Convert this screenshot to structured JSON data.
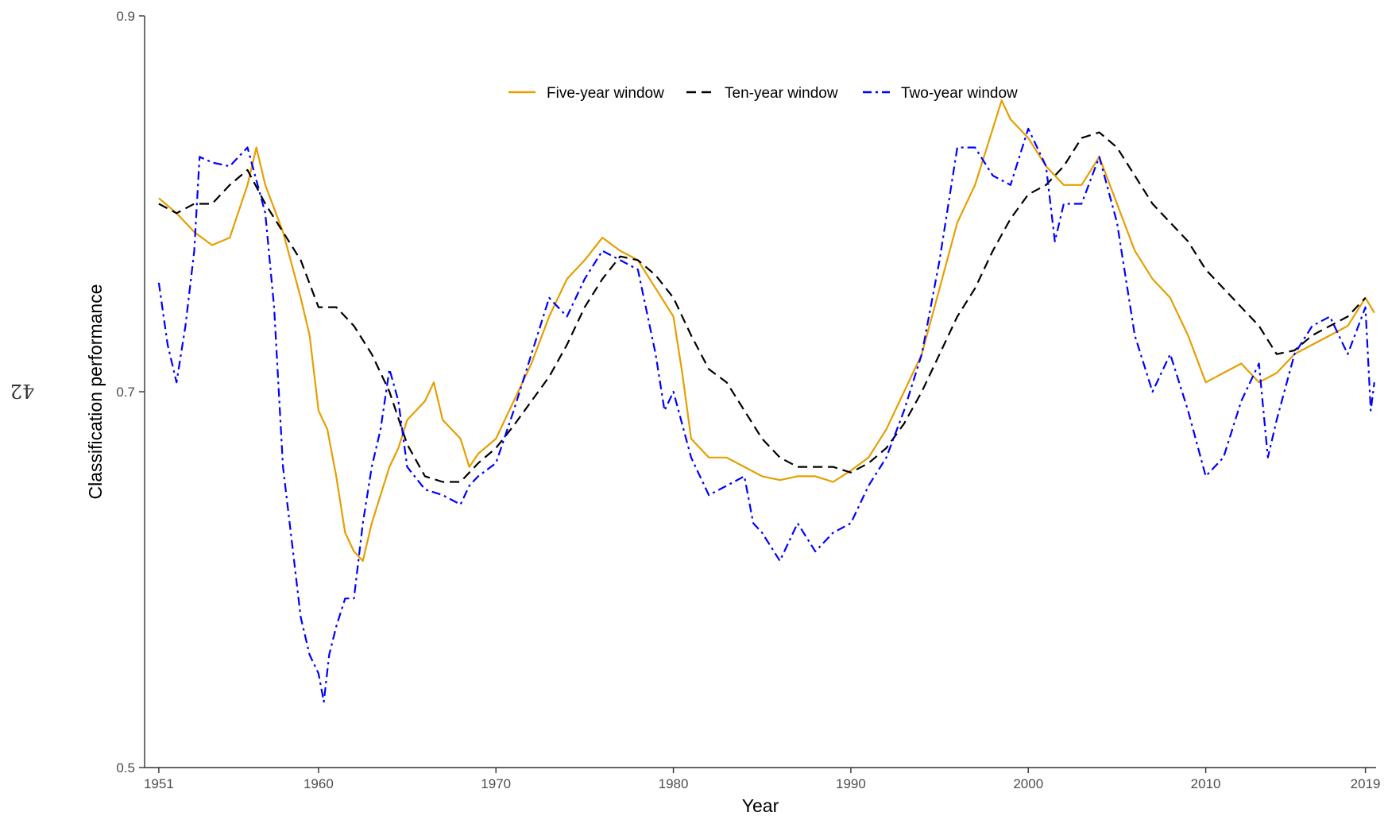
{
  "page_number": "42",
  "chart_data": {
    "type": "line",
    "title": "",
    "xlabel": "Year",
    "ylabel": "Classification performance",
    "xlim": [
      1950.2,
      2019.6
    ],
    "ylim": [
      0.5,
      0.9
    ],
    "x_ticks": [
      1951,
      1960,
      1970,
      1980,
      1990,
      2000,
      2010,
      2019
    ],
    "y_ticks": [
      0.5,
      0.7,
      0.9
    ],
    "grid": false,
    "legend_position": "top-center",
    "series": [
      {
        "name": "Five-year window",
        "color": "#E69F00",
        "dash": "solid",
        "points": [
          [
            1951,
            0.803
          ],
          [
            1952,
            0.795
          ],
          [
            1953,
            0.785
          ],
          [
            1954,
            0.778
          ],
          [
            1955,
            0.782
          ],
          [
            1956,
            0.81
          ],
          [
            1956.5,
            0.83
          ],
          [
            1957,
            0.81
          ],
          [
            1958,
            0.785
          ],
          [
            1959,
            0.75
          ],
          [
            1959.5,
            0.73
          ],
          [
            1960,
            0.69
          ],
          [
            1960.5,
            0.68
          ],
          [
            1961,
            0.655
          ],
          [
            1961.5,
            0.625
          ],
          [
            1962,
            0.615
          ],
          [
            1962.5,
            0.61
          ],
          [
            1963,
            0.63
          ],
          [
            1963.5,
            0.645
          ],
          [
            1964,
            0.66
          ],
          [
            1964.5,
            0.67
          ],
          [
            1965,
            0.685
          ],
          [
            1966,
            0.695
          ],
          [
            1966.5,
            0.705
          ],
          [
            1967,
            0.685
          ],
          [
            1968,
            0.675
          ],
          [
            1968.5,
            0.66
          ],
          [
            1969,
            0.667
          ],
          [
            1970,
            0.675
          ],
          [
            1971,
            0.695
          ],
          [
            1972,
            0.715
          ],
          [
            1973,
            0.74
          ],
          [
            1974,
            0.76
          ],
          [
            1975,
            0.77
          ],
          [
            1976,
            0.782
          ],
          [
            1977,
            0.775
          ],
          [
            1978,
            0.77
          ],
          [
            1979,
            0.755
          ],
          [
            1980,
            0.74
          ],
          [
            1980.5,
            0.71
          ],
          [
            1981,
            0.675
          ],
          [
            1982,
            0.665
          ],
          [
            1983,
            0.665
          ],
          [
            1984,
            0.66
          ],
          [
            1985,
            0.655
          ],
          [
            1986,
            0.653
          ],
          [
            1987,
            0.655
          ],
          [
            1988,
            0.655
          ],
          [
            1989,
            0.652
          ],
          [
            1990,
            0.658
          ],
          [
            1991,
            0.665
          ],
          [
            1992,
            0.68
          ],
          [
            1993,
            0.7
          ],
          [
            1994,
            0.72
          ],
          [
            1995,
            0.755
          ],
          [
            1996,
            0.79
          ],
          [
            1997,
            0.81
          ],
          [
            1998,
            0.84
          ],
          [
            1998.5,
            0.855
          ],
          [
            1999,
            0.845
          ],
          [
            2000,
            0.835
          ],
          [
            2001,
            0.82
          ],
          [
            2002,
            0.81
          ],
          [
            2003,
            0.81
          ],
          [
            2004,
            0.825
          ],
          [
            2005,
            0.8
          ],
          [
            2006,
            0.775
          ],
          [
            2007,
            0.76
          ],
          [
            2008,
            0.75
          ],
          [
            2009,
            0.73
          ],
          [
            2010,
            0.705
          ],
          [
            2011,
            0.71
          ],
          [
            2012,
            0.715
          ],
          [
            2013,
            0.705
          ],
          [
            2014,
            0.71
          ],
          [
            2015,
            0.72
          ],
          [
            2016,
            0.725
          ],
          [
            2017,
            0.73
          ],
          [
            2018,
            0.735
          ],
          [
            2019,
            0.75
          ],
          [
            2019.5,
            0.742
          ]
        ]
      },
      {
        "name": "Ten-year window",
        "color": "#000000",
        "dash": "dashed",
        "points": [
          [
            1951,
            0.8
          ],
          [
            1952,
            0.795
          ],
          [
            1953,
            0.8
          ],
          [
            1954,
            0.8
          ],
          [
            1955,
            0.81
          ],
          [
            1956,
            0.818
          ],
          [
            1957,
            0.8
          ],
          [
            1958,
            0.785
          ],
          [
            1959,
            0.77
          ],
          [
            1960,
            0.745
          ],
          [
            1961,
            0.745
          ],
          [
            1962,
            0.735
          ],
          [
            1963,
            0.72
          ],
          [
            1964,
            0.7
          ],
          [
            1965,
            0.672
          ],
          [
            1966,
            0.655
          ],
          [
            1967,
            0.652
          ],
          [
            1968,
            0.652
          ],
          [
            1969,
            0.662
          ],
          [
            1970,
            0.67
          ],
          [
            1971,
            0.682
          ],
          [
            1972,
            0.695
          ],
          [
            1973,
            0.708
          ],
          [
            1974,
            0.725
          ],
          [
            1975,
            0.745
          ],
          [
            1976,
            0.76
          ],
          [
            1977,
            0.772
          ],
          [
            1978,
            0.77
          ],
          [
            1979,
            0.762
          ],
          [
            1980,
            0.75
          ],
          [
            1981,
            0.73
          ],
          [
            1982,
            0.712
          ],
          [
            1983,
            0.705
          ],
          [
            1984,
            0.69
          ],
          [
            1985,
            0.675
          ],
          [
            1986,
            0.665
          ],
          [
            1987,
            0.66
          ],
          [
            1988,
            0.66
          ],
          [
            1989,
            0.66
          ],
          [
            1990,
            0.657
          ],
          [
            1991,
            0.662
          ],
          [
            1992,
            0.67
          ],
          [
            1993,
            0.683
          ],
          [
            1994,
            0.7
          ],
          [
            1995,
            0.72
          ],
          [
            1996,
            0.74
          ],
          [
            1997,
            0.755
          ],
          [
            1998,
            0.775
          ],
          [
            1999,
            0.792
          ],
          [
            2000,
            0.805
          ],
          [
            2001,
            0.81
          ],
          [
            2002,
            0.82
          ],
          [
            2003,
            0.835
          ],
          [
            2004,
            0.838
          ],
          [
            2005,
            0.83
          ],
          [
            2006,
            0.815
          ],
          [
            2007,
            0.8
          ],
          [
            2008,
            0.79
          ],
          [
            2009,
            0.78
          ],
          [
            2010,
            0.765
          ],
          [
            2011,
            0.755
          ],
          [
            2012,
            0.745
          ],
          [
            2013,
            0.735
          ],
          [
            2014,
            0.72
          ],
          [
            2015,
            0.722
          ],
          [
            2016,
            0.73
          ],
          [
            2017,
            0.735
          ],
          [
            2018,
            0.74
          ],
          [
            2019,
            0.75
          ]
        ]
      },
      {
        "name": "Two-year window",
        "color": "#0000FF",
        "dash": "dotdash",
        "points": [
          [
            1951,
            0.758
          ],
          [
            1951.5,
            0.725
          ],
          [
            1952,
            0.705
          ],
          [
            1952.5,
            0.735
          ],
          [
            1953,
            0.775
          ],
          [
            1953.3,
            0.825
          ],
          [
            1954,
            0.822
          ],
          [
            1955,
            0.82
          ],
          [
            1956,
            0.83
          ],
          [
            1957,
            0.795
          ],
          [
            1957.5,
            0.745
          ],
          [
            1958,
            0.66
          ],
          [
            1958.5,
            0.62
          ],
          [
            1959,
            0.58
          ],
          [
            1959.5,
            0.56
          ],
          [
            1960,
            0.55
          ],
          [
            1960.3,
            0.535
          ],
          [
            1960.6,
            0.56
          ],
          [
            1961,
            0.575
          ],
          [
            1961.5,
            0.59
          ],
          [
            1962,
            0.59
          ],
          [
            1962.5,
            0.63
          ],
          [
            1963,
            0.66
          ],
          [
            1963.5,
            0.68
          ],
          [
            1964,
            0.712
          ],
          [
            1964.5,
            0.695
          ],
          [
            1965,
            0.66
          ],
          [
            1966,
            0.648
          ],
          [
            1967,
            0.645
          ],
          [
            1968,
            0.64
          ],
          [
            1968.5,
            0.65
          ],
          [
            1969,
            0.655
          ],
          [
            1970,
            0.662
          ],
          [
            1971,
            0.69
          ],
          [
            1972,
            0.72
          ],
          [
            1973,
            0.75
          ],
          [
            1974,
            0.74
          ],
          [
            1975,
            0.76
          ],
          [
            1976,
            0.775
          ],
          [
            1977,
            0.77
          ],
          [
            1978,
            0.765
          ],
          [
            1979,
            0.72
          ],
          [
            1979.5,
            0.69
          ],
          [
            1980,
            0.7
          ],
          [
            1981,
            0.665
          ],
          [
            1982,
            0.645
          ],
          [
            1983,
            0.65
          ],
          [
            1984,
            0.655
          ],
          [
            1984.5,
            0.63
          ],
          [
            1985,
            0.625
          ],
          [
            1986,
            0.61
          ],
          [
            1987,
            0.63
          ],
          [
            1988,
            0.615
          ],
          [
            1989,
            0.625
          ],
          [
            1990,
            0.63
          ],
          [
            1991,
            0.65
          ],
          [
            1992,
            0.665
          ],
          [
            1993,
            0.69
          ],
          [
            1994,
            0.72
          ],
          [
            1995,
            0.77
          ],
          [
            1996,
            0.83
          ],
          [
            1997,
            0.83
          ],
          [
            1998,
            0.815
          ],
          [
            1999,
            0.81
          ],
          [
            2000,
            0.84
          ],
          [
            2001,
            0.82
          ],
          [
            2001.5,
            0.78
          ],
          [
            2002,
            0.8
          ],
          [
            2003,
            0.8
          ],
          [
            2004,
            0.825
          ],
          [
            2005,
            0.79
          ],
          [
            2006,
            0.73
          ],
          [
            2007,
            0.7
          ],
          [
            2008,
            0.72
          ],
          [
            2009,
            0.69
          ],
          [
            2010,
            0.655
          ],
          [
            2011,
            0.665
          ],
          [
            2012,
            0.695
          ],
          [
            2013,
            0.715
          ],
          [
            2013.5,
            0.665
          ],
          [
            2014,
            0.685
          ],
          [
            2015,
            0.72
          ],
          [
            2016,
            0.735
          ],
          [
            2017,
            0.74
          ],
          [
            2018,
            0.72
          ],
          [
            2019,
            0.745
          ],
          [
            2019.3,
            0.69
          ],
          [
            2019.5,
            0.705
          ]
        ]
      }
    ]
  }
}
